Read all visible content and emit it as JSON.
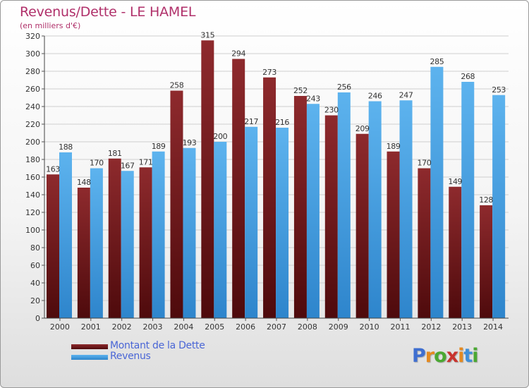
{
  "header": {
    "title": "Revenus/Dette - LE HAMEL",
    "subtitle": "(en milliers d'€)"
  },
  "logo": {
    "text": "Proxiti",
    "letter_colors": [
      "#3f6fd0",
      "#e58a1f",
      "#4aa832",
      "#c8332e",
      "#e58a1f",
      "#3f8fd8",
      "#4aa832"
    ]
  },
  "chart_data": {
    "type": "bar",
    "categories": [
      "2000",
      "2001",
      "2002",
      "2003",
      "2004",
      "2005",
      "2006",
      "2007",
      "2008",
      "2009",
      "2010",
      "2011",
      "2012",
      "2013",
      "2014"
    ],
    "series": [
      {
        "name": "Montant de la Dette",
        "values": [
          163,
          148,
          181,
          171,
          258,
          315,
          294,
          273,
          252,
          230,
          209,
          189,
          170,
          149,
          128
        ],
        "color": "#7a1f22"
      },
      {
        "name": "Revenus",
        "values": [
          188,
          170,
          167,
          189,
          193,
          200,
          217,
          216,
          243,
          256,
          246,
          247,
          285,
          268,
          253
        ],
        "color": "#4ea6e6"
      }
    ],
    "yticks": [
      0,
      20,
      40,
      60,
      80,
      100,
      120,
      140,
      160,
      180,
      200,
      220,
      240,
      260,
      280,
      300,
      320
    ],
    "ylim": [
      0,
      320
    ],
    "grid": true,
    "legend": "bottom-left"
  }
}
